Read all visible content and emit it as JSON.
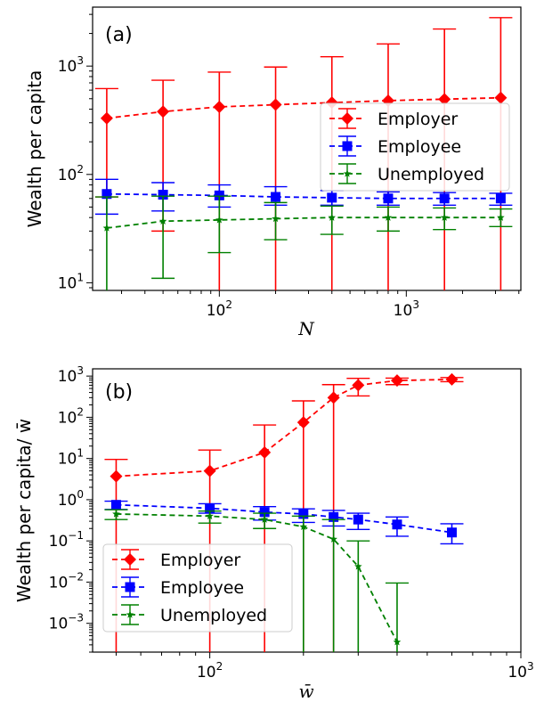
{
  "chart_data": [
    {
      "type": "line",
      "panel_label": "(a)",
      "xlabel": "N",
      "ylabel": "Wealth per capita",
      "xscale": "log",
      "yscale": "log",
      "xlim": [
        21,
        4100
      ],
      "ylim": [
        8.5,
        3500
      ],
      "x_ticks": [
        {
          "value": 100,
          "base": "10",
          "exp": "2"
        },
        {
          "value": 1000,
          "base": "10",
          "exp": "3"
        }
      ],
      "y_ticks": [
        {
          "value": 10,
          "base": "10",
          "exp": "1"
        },
        {
          "value": 100,
          "base": "10",
          "exp": "2"
        },
        {
          "value": 1000,
          "base": "10",
          "exp": "3"
        }
      ],
      "grid": false,
      "legend_position": "center-right",
      "series": [
        {
          "name": "Employer",
          "color": "#ff0000",
          "marker": "diamond",
          "x": [
            25,
            50,
            100,
            200,
            400,
            800,
            1600,
            3200
          ],
          "y": [
            330,
            380,
            420,
            440,
            460,
            480,
            495,
            510
          ],
          "err_low": [
            62,
            30,
            8,
            8,
            8,
            8,
            8,
            8
          ],
          "err_high": [
            620,
            740,
            880,
            980,
            1220,
            1600,
            2200,
            2800
          ]
        },
        {
          "name": "Employee",
          "color": "#0000ff",
          "marker": "square",
          "x": [
            25,
            50,
            100,
            200,
            400,
            800,
            1600,
            3200
          ],
          "y": [
            66,
            65,
            64,
            62,
            61,
            60,
            60,
            60
          ],
          "err_low": [
            43,
            46,
            50,
            52,
            52,
            52,
            52,
            52
          ],
          "err_high": [
            90,
            84,
            80,
            77,
            71,
            69,
            68,
            67
          ]
        },
        {
          "name": "Unemployed",
          "color": "#008000",
          "marker": "star",
          "x": [
            25,
            50,
            100,
            200,
            400,
            800,
            1600,
            3200
          ],
          "y": [
            32,
            37,
            38,
            39,
            40,
            40,
            40,
            40
          ],
          "err_low": [
            8,
            11,
            19,
            25,
            28,
            30,
            31,
            33
          ],
          "err_high": [
            62,
            63,
            63,
            55,
            51,
            50,
            49,
            48
          ]
        }
      ]
    },
    {
      "type": "line",
      "panel_label": "(b)",
      "xlabel": "w̄",
      "ylabel": "Wealth per capita/ w̄",
      "xscale": "log",
      "yscale": "log",
      "xlim": [
        42,
        1000
      ],
      "ylim": [
        0.0002,
        1500
      ],
      "x_ticks": [
        {
          "value": 100,
          "base": "10",
          "exp": "2"
        },
        {
          "value": 1000,
          "base": "10",
          "exp": "3"
        }
      ],
      "y_ticks": [
        {
          "value": 0.001,
          "base": "10",
          "exp": "−3"
        },
        {
          "value": 0.01,
          "base": "10",
          "exp": "−2"
        },
        {
          "value": 0.1,
          "base": "10",
          "exp": "−1"
        },
        {
          "value": 1,
          "base": "10",
          "exp": "0"
        },
        {
          "value": 10,
          "base": "10",
          "exp": "1"
        },
        {
          "value": 100,
          "base": "10",
          "exp": "2"
        },
        {
          "value": 1000,
          "base": "10",
          "exp": "3"
        }
      ],
      "grid": false,
      "legend_position": "lower-left",
      "series": [
        {
          "name": "Employer",
          "color": "#ff0000",
          "marker": "diamond",
          "x": [
            50,
            100,
            150,
            200,
            250,
            300,
            400,
            600
          ],
          "y": [
            3.7,
            5,
            14,
            75,
            300,
            600,
            780,
            830
          ],
          "err_low": [
            0.0002,
            0.0002,
            0.0002,
            0.0002,
            0.0002,
            330,
            620,
            730
          ],
          "err_high": [
            9.5,
            16,
            65,
            250,
            620,
            880,
            890,
            920
          ]
        },
        {
          "name": "Employee",
          "color": "#0000ff",
          "marker": "square",
          "x": [
            50,
            100,
            150,
            200,
            250,
            300,
            400,
            600
          ],
          "y": [
            0.75,
            0.62,
            0.5,
            0.45,
            0.38,
            0.33,
            0.25,
            0.16
          ],
          "err_low": [
            0.58,
            0.47,
            0.32,
            0.28,
            0.23,
            0.19,
            0.13,
            0.085
          ],
          "err_high": [
            0.92,
            0.8,
            0.68,
            0.6,
            0.55,
            0.47,
            0.38,
            0.26
          ]
        },
        {
          "name": "Unemployed",
          "color": "#008000",
          "marker": "star",
          "x": [
            50,
            100,
            150,
            200,
            250,
            300,
            400
          ],
          "y": [
            0.45,
            0.4,
            0.33,
            0.22,
            0.11,
            0.024,
            0.00035
          ],
          "err_low": [
            0.33,
            0.27,
            0.2,
            0.0002,
            0.0002,
            0.0002,
            0.0002
          ],
          "err_high": [
            0.57,
            0.53,
            0.47,
            0.4,
            0.33,
            0.1,
            0.0095
          ]
        }
      ]
    }
  ]
}
